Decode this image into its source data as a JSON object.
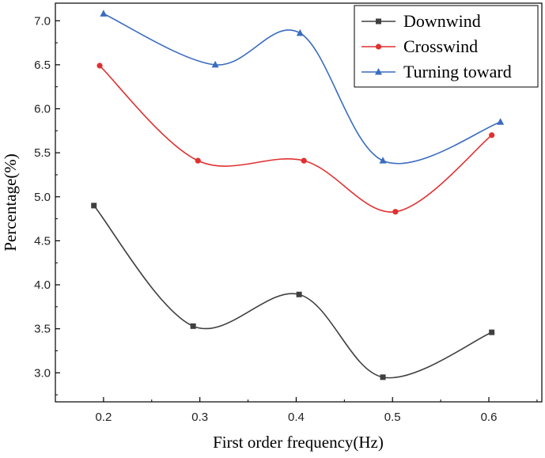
{
  "chart_data": {
    "type": "line",
    "xlabel": "First order frequency(Hz)",
    "ylabel": "Percentage(%)",
    "xlim": [
      0.15,
      0.655
    ],
    "ylim": [
      2.67,
      7.2
    ],
    "x_ticks": [
      0.2,
      0.3,
      0.4,
      0.5,
      0.6
    ],
    "x_tick_labels": [
      "0.2",
      "0.3",
      "0.4",
      "0.5",
      "0.6"
    ],
    "y_ticks": [
      3.0,
      3.5,
      4.0,
      4.5,
      5.0,
      5.5,
      6.0,
      6.5,
      7.0
    ],
    "y_tick_labels": [
      "3.0",
      "3.5",
      "4.0",
      "4.5",
      "5.0",
      "5.5",
      "6.0",
      "6.5",
      "7.0"
    ],
    "grid": false,
    "legend_position": "top-right",
    "series": [
      {
        "name": "Downwind",
        "color": "#404040",
        "marker": "square",
        "x": [
          0.19,
          0.293,
          0.403,
          0.49,
          0.603
        ],
        "y": [
          4.9,
          3.53,
          3.89,
          2.95,
          3.46
        ]
      },
      {
        "name": "Crosswind",
        "color": "#e03030",
        "marker": "circle",
        "x": [
          0.196,
          0.298,
          0.408,
          0.503,
          0.603
        ],
        "y": [
          6.49,
          5.41,
          5.41,
          4.83,
          5.7
        ]
      },
      {
        "name": "Turning toward",
        "color": "#3a6cc0",
        "marker": "triangle",
        "x": [
          0.2,
          0.316,
          0.404,
          0.49,
          0.612
        ],
        "y": [
          7.08,
          6.5,
          6.86,
          5.41,
          5.85
        ]
      }
    ]
  }
}
